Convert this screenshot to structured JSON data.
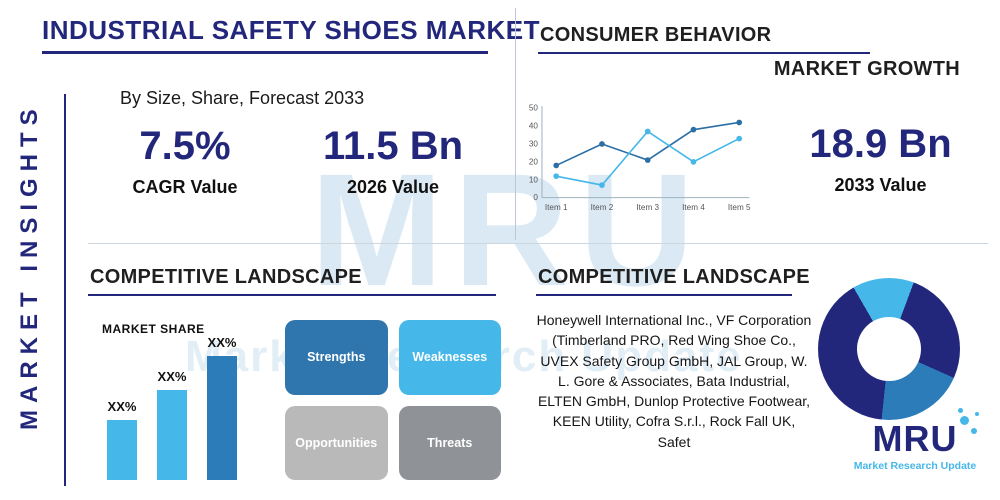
{
  "page": {
    "title": "INDUSTRIAL SAFETY SHOES MARKET",
    "subtitle": "By Size, Share, Forecast 2033",
    "side_label": "MARKET INSIGHTS"
  },
  "watermark": {
    "line1": "MRU",
    "line2": "Market Research Update"
  },
  "colors": {
    "navy": "#23277b",
    "light_blue": "#45b7e8",
    "steel_blue": "#2b7cb9",
    "gray_light": "#b9b9b9",
    "gray_dark": "#8f9296"
  },
  "stats": {
    "cagr": {
      "value": "7.5%",
      "label": "CAGR Value"
    },
    "value_2026": {
      "value": "11.5 Bn",
      "label": "2026 Value"
    },
    "value_2033": {
      "value": "18.9 Bn",
      "label": "2033 Value"
    }
  },
  "headings": {
    "consumer_behavior": "CONSUMER BEHAVIOR",
    "market_growth": "MARKET GROWTH",
    "competitive_landscape_left": "COMPETITIVE LANDSCAPE",
    "competitive_landscape_right": "COMPETITIVE LANDSCAPE"
  },
  "swot": [
    {
      "label": "Strengths",
      "color": "#2e76ad"
    },
    {
      "label": "Weaknesses",
      "color": "#45b7e8"
    },
    {
      "label": "Opportunities",
      "color": "#b9b9b9"
    },
    {
      "label": "Threats",
      "color": "#8f9296"
    }
  ],
  "companies": "Honeywell International Inc., VF Corporation (Timberland PRO, Red Wing Shoe Co., UVEX Safety Group GmbH, JAL Group, W. L. Gore & Associates, Bata Industrial, ELTEN GmbH, Dunlop Protective Footwear, KEEN Utility, Cofra S.r.l., Rock Fall UK, Safet",
  "logo": {
    "text": "MRU",
    "subtext": "Market Research Update"
  },
  "chart_data": [
    {
      "type": "line",
      "title": "MARKET GROWTH",
      "categories": [
        "Item 1",
        "Item 2",
        "Item 3",
        "Item 4",
        "Item 5"
      ],
      "series": [
        {
          "name": "series-dark-blue",
          "color": "#2c6fa5",
          "values": [
            18,
            30,
            21,
            38,
            42
          ]
        },
        {
          "name": "series-light-blue",
          "color": "#45b7e8",
          "values": [
            12,
            7,
            37,
            20,
            33
          ]
        }
      ],
      "ylim": [
        0,
        50
      ],
      "yticks": [
        0,
        10,
        20,
        30,
        40,
        50
      ],
      "xlabel": "",
      "ylabel": "",
      "grid": false,
      "legend": false
    },
    {
      "type": "bar",
      "title": "MARKET SHARE",
      "categories": [
        "XX%",
        "XX%",
        "XX%"
      ],
      "values": [
        28,
        42,
        58
      ],
      "colors": [
        "#45b7e8",
        "#45b7e8",
        "#2b7cb9"
      ],
      "ylim": [
        0,
        70
      ],
      "xlabel": "",
      "ylabel": ""
    },
    {
      "type": "pie",
      "subtype": "donut",
      "start_angle": -30,
      "slices": [
        {
          "name": "slice-light-blue",
          "value": 14,
          "color": "#45b7e8"
        },
        {
          "name": "slice-navy-right",
          "value": 26,
          "color": "#23277b"
        },
        {
          "name": "slice-steel-blue",
          "value": 20,
          "color": "#2b7cb9"
        },
        {
          "name": "slice-navy-left",
          "value": 40,
          "color": "#23277b"
        }
      ]
    }
  ]
}
